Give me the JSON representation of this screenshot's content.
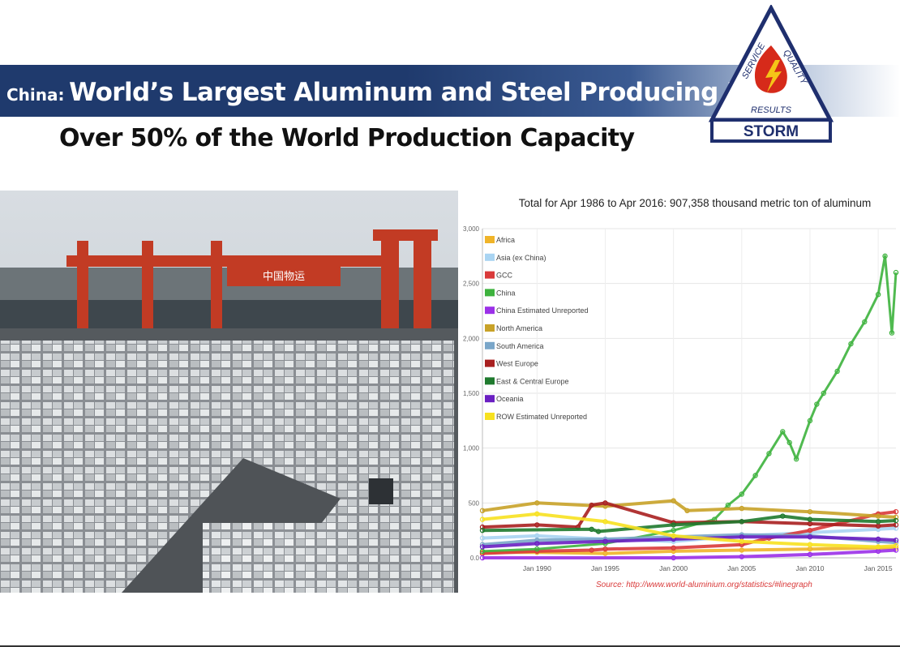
{
  "slide": {
    "title_prefix": "China:",
    "title_main": "World’s Largest Aluminum and Steel Producing Nation",
    "subtitle": "Over 50% of the World Production Capacity"
  },
  "logo": {
    "words": [
      "SERVICE",
      "QUALITY",
      "RESULTS"
    ],
    "brand": "STORM",
    "colors": {
      "outline": "#1f2f6e",
      "flame": "#d62a1a",
      "bolt": "#f5c518"
    }
  },
  "photo": {
    "crane_sign": "中国物运"
  },
  "chart_data": {
    "type": "line",
    "title": "Total for Apr 1986 to Apr 2016: 907,358  thousand metric ton of aluminum",
    "source": "Source: http://www.world-aluminium.org/statistics/#linegraph",
    "xlabel": "",
    "ylabel": "",
    "xlim": [
      1986,
      2016.3
    ],
    "ylim": [
      0,
      3000
    ],
    "x_ticks": [
      {
        "v": 1990,
        "label": "Jan 1990"
      },
      {
        "v": 1995,
        "label": "Jan 1995"
      },
      {
        "v": 2000,
        "label": "Jan 2000"
      },
      {
        "v": 2005,
        "label": "Jan 2005"
      },
      {
        "v": 2010,
        "label": "Jan 2010"
      },
      {
        "v": 2015,
        "label": "Jan 2015"
      }
    ],
    "y_ticks": [
      {
        "v": 0,
        "label": "0.0"
      },
      {
        "v": 500,
        "label": "500"
      },
      {
        "v": 1000,
        "label": "1,000"
      },
      {
        "v": 1500,
        "label": "1,500"
      },
      {
        "v": 2000,
        "label": "2,000"
      },
      {
        "v": 2500,
        "label": "2,500"
      },
      {
        "v": 3000,
        "label": "3,000"
      }
    ],
    "legend_position": "top-left",
    "series": [
      {
        "name": "Africa",
        "color": "#f0b429",
        "x": [
          1986,
          1990,
          1995,
          2000,
          2005,
          2010,
          2015,
          2016.3
        ],
        "y": [
          50,
          50,
          40,
          60,
          70,
          80,
          90,
          90
        ]
      },
      {
        "name": "Asia (ex China)",
        "color": "#a9d4f2",
        "x": [
          1986,
          1990,
          1995,
          2000,
          2005,
          2010,
          2015,
          2016.3
        ],
        "y": [
          180,
          200,
          170,
          150,
          200,
          230,
          260,
          270
        ]
      },
      {
        "name": "GCC",
        "color": "#d93a3a",
        "x": [
          1986,
          1990,
          1994,
          1995,
          2000,
          2005,
          2007,
          2010,
          2015,
          2016.3
        ],
        "y": [
          40,
          60,
          70,
          80,
          90,
          120,
          180,
          250,
          400,
          420
        ]
      },
      {
        "name": "China",
        "color": "#3db23d",
        "x": [
          1986,
          1990,
          1995,
          2000,
          2003,
          2004,
          2005,
          2006,
          2007,
          2008,
          2008.5,
          2009,
          2010,
          2010.5,
          2011,
          2012,
          2013,
          2014,
          2015,
          2015.5,
          2016,
          2016.3
        ],
        "y": [
          60,
          80,
          130,
          250,
          350,
          480,
          580,
          750,
          950,
          1150,
          1050,
          900,
          1250,
          1400,
          1500,
          1700,
          1950,
          2150,
          2400,
          2750,
          2050,
          2600
        ]
      },
      {
        "name": "China Estimated Unreported",
        "color": "#9b30e8",
        "x": [
          1986,
          2000,
          2005,
          2010,
          2015,
          2016.3
        ],
        "y": [
          0,
          0,
          10,
          30,
          60,
          70
        ]
      },
      {
        "name": "North America",
        "color": "#c8a228",
        "x": [
          1986,
          1990,
          1995,
          2000,
          2001,
          2005,
          2010,
          2015,
          2016.3
        ],
        "y": [
          430,
          500,
          470,
          520,
          430,
          450,
          420,
          380,
          370
        ]
      },
      {
        "name": "South America",
        "color": "#7aa6c9",
        "x": [
          1986,
          1990,
          1995,
          2000,
          2005,
          2010,
          2015,
          2016.3
        ],
        "y": [
          120,
          160,
          170,
          190,
          210,
          200,
          150,
          140
        ]
      },
      {
        "name": "West Europe",
        "color": "#a81f1f",
        "x": [
          1986,
          1990,
          1993,
          1994,
          1995,
          2000,
          2005,
          2010,
          2015,
          2016.3
        ],
        "y": [
          280,
          300,
          280,
          480,
          500,
          320,
          330,
          310,
          290,
          300
        ]
      },
      {
        "name": "East & Central Europe",
        "color": "#1f7a2e",
        "x": [
          1986,
          1994,
          1994.5,
          2000,
          2005,
          2008,
          2010,
          2015,
          2016.3
        ],
        "y": [
          250,
          260,
          240,
          300,
          330,
          380,
          350,
          330,
          340
        ]
      },
      {
        "name": "Oceania",
        "color": "#6a1fc2",
        "x": [
          1986,
          1990,
          1995,
          2000,
          2005,
          2010,
          2015,
          2016.3
        ],
        "y": [
          100,
          130,
          150,
          170,
          190,
          190,
          170,
          160
        ]
      },
      {
        "name": "ROW Estimated Unreported",
        "color": "#f7e11f",
        "x": [
          1986,
          1990,
          1995,
          2000,
          2005,
          2010,
          2015,
          2016.3
        ],
        "y": [
          350,
          400,
          330,
          200,
          150,
          120,
          100,
          110
        ]
      }
    ]
  }
}
